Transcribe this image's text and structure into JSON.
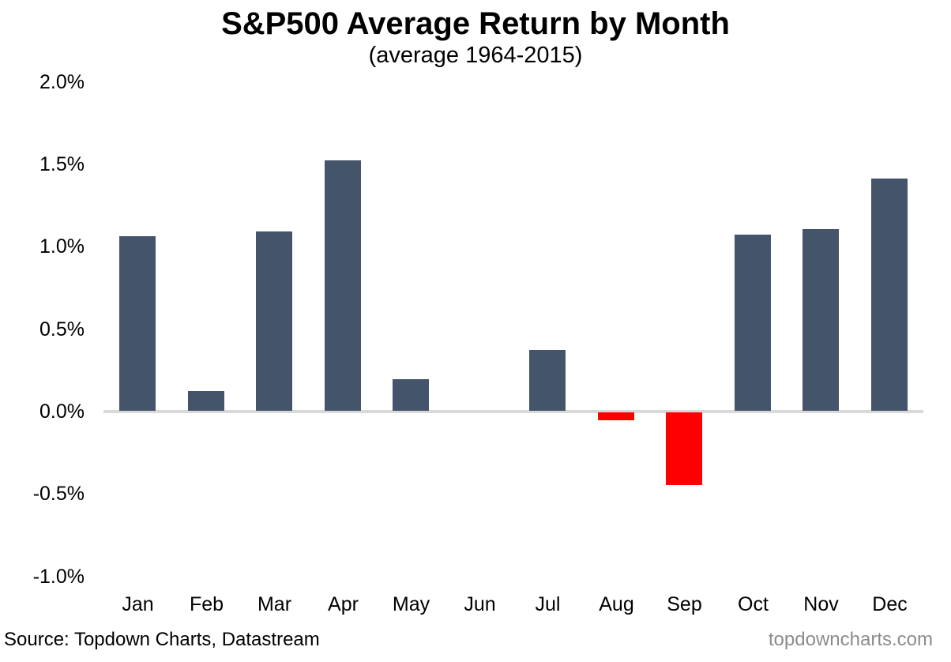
{
  "title": "S&P500 Average Return by Month",
  "subtitle": "(average 1964-2015)",
  "footer": {
    "source": "Source: Topdown Charts, Datastream",
    "website": "topdowncharts.com"
  },
  "colors": {
    "positive_bar": "#44546A",
    "negative_bar": "#FF0000",
    "zero_line": "#D9D9D9",
    "text": "#000000",
    "website_text": "#8C8C8C"
  },
  "chart_data": {
    "type": "bar",
    "title": "S&P500 Average Return by Month",
    "subtitle": "(average 1964-2015)",
    "categories": [
      "Jan",
      "Feb",
      "Mar",
      "Apr",
      "May",
      "Jun",
      "Jul",
      "Aug",
      "Sep",
      "Oct",
      "Nov",
      "Dec"
    ],
    "values": [
      1.06,
      0.12,
      1.09,
      1.52,
      0.19,
      0.0,
      0.37,
      -0.05,
      -0.44,
      1.07,
      1.1,
      1.41
    ],
    "value_unit": "%",
    "xlabel": "",
    "ylabel": "",
    "ylim": [
      -1.0,
      2.0
    ],
    "ytick_labels": [
      "2.0%",
      "1.5%",
      "1.0%",
      "0.5%",
      "0.0%",
      "-0.5%",
      "-1.0%"
    ],
    "grid": false,
    "legend": false,
    "negative_bars_red": [
      "Aug",
      "Sep"
    ]
  }
}
